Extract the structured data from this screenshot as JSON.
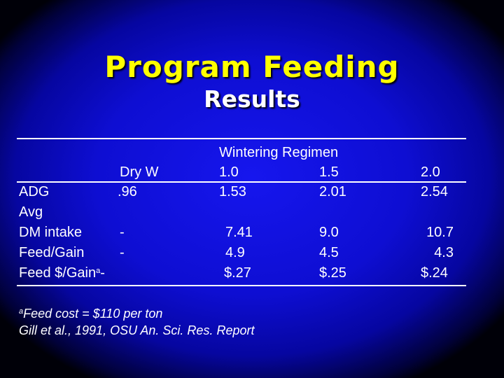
{
  "title": "Program Feeding",
  "subtitle": "Results",
  "table": {
    "group_header": "Wintering Regimen",
    "columns": [
      "Dry W",
      "1.0",
      "1.5",
      "2.0"
    ],
    "rows": [
      {
        "label": "ADG",
        "values": [
          ".96",
          "1.53",
          "2.01",
          "2.54"
        ]
      },
      {
        "label": "Avg",
        "values": [
          "",
          "",
          "",
          ""
        ]
      },
      {
        "label": "DM intake",
        "values": [
          "-",
          "7.41",
          "9.0",
          "10.7"
        ]
      },
      {
        "label": "Feed/Gain",
        "values": [
          "-",
          "4.9",
          "4.5",
          "4.3"
        ]
      },
      {
        "label": "Feed $/Gain",
        "label_sup": "a",
        "values": [
          "-",
          "$.27",
          "$.25",
          "$.24"
        ]
      }
    ]
  },
  "footnotes": {
    "note_marker": "a",
    "note": "Feed cost = $110 per ton",
    "source": "Gill et al., 1991, OSU An. Sci. Res. Report"
  }
}
